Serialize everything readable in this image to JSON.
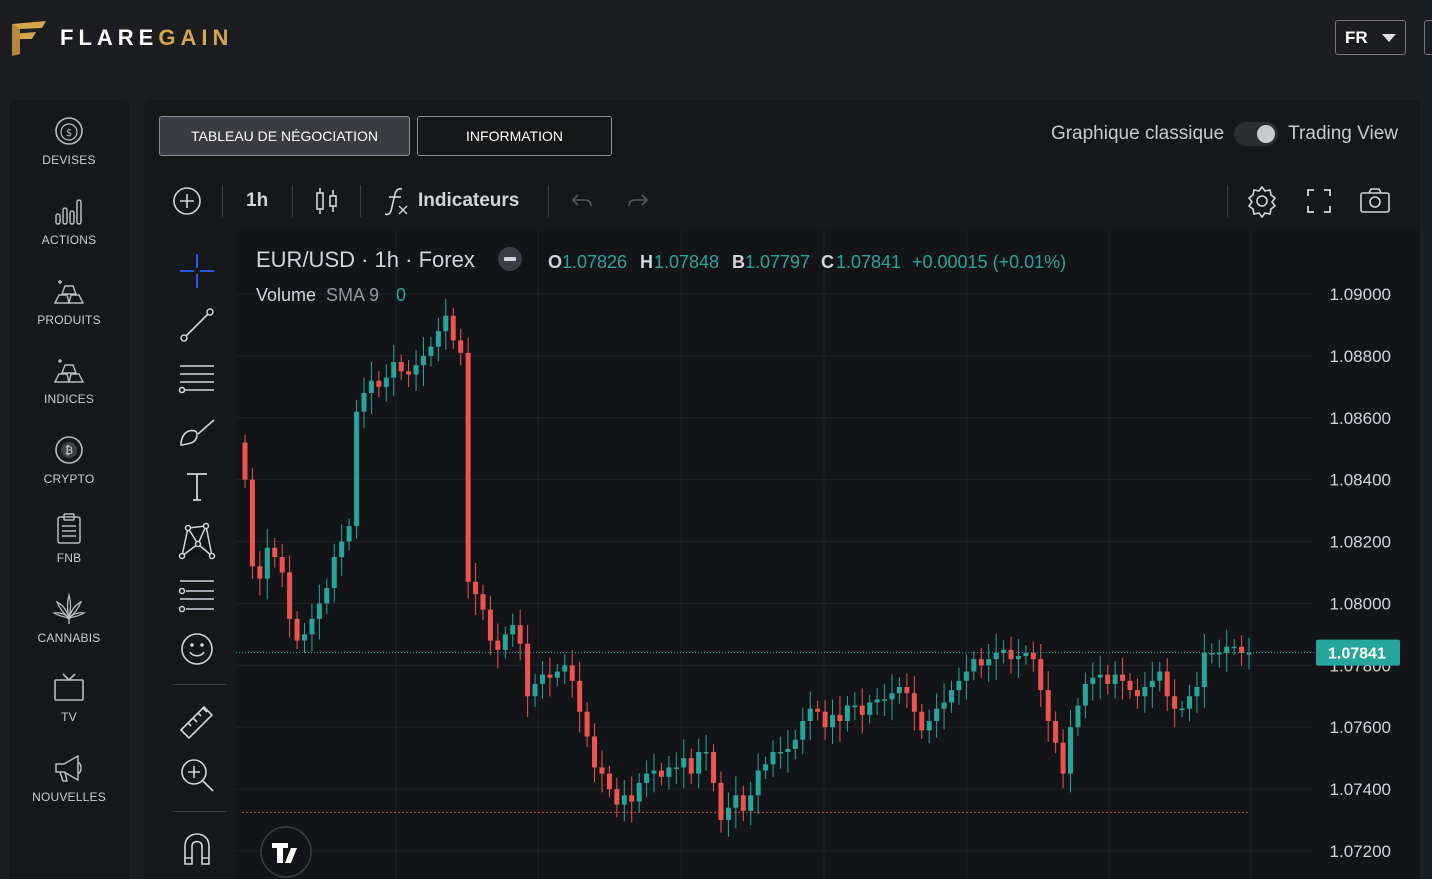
{
  "brand": {
    "part1": "FLARE",
    "part2": "GAIN",
    "gold": "#d4a54a"
  },
  "lang": {
    "value": "FR"
  },
  "sidebar": {
    "items": [
      {
        "label": "DEVISES",
        "icon": "dollar-coin-icon"
      },
      {
        "label": "ACTIONS",
        "icon": "bar-chart-icon"
      },
      {
        "label": "PRODUITS",
        "icon": "gold-bars-icon"
      },
      {
        "label": "INDICES",
        "icon": "gold-bars-icon"
      },
      {
        "label": "CRYPTO",
        "icon": "bitcoin-icon"
      },
      {
        "label": "FNB",
        "icon": "clipboard-icon"
      },
      {
        "label": "CANNABIS",
        "icon": "cannabis-leaf-icon"
      },
      {
        "label": "TV",
        "icon": "tv-icon"
      },
      {
        "label": "NOUVELLES",
        "icon": "megaphone-icon"
      }
    ]
  },
  "tabs": {
    "trading": "TABLEAU DE NÉGOCIATION",
    "info": "INFORMATION"
  },
  "view_toggle": {
    "left": "Graphique classique",
    "right": "Trading View"
  },
  "toolbar": {
    "interval": "1h",
    "indicators": "Indicateurs"
  },
  "legend": {
    "symbol": "EUR/USD · 1h · Forex",
    "o_label": "O",
    "o": "1.07826",
    "h_label": "H",
    "h": "1.07848",
    "b_label": "B",
    "b": "1.07797",
    "c_label": "C",
    "c": "1.07841",
    "change": "+0.00015 (+0.01%)",
    "volume_label": "Volume",
    "volume_sma": "SMA 9",
    "volume_value": "0"
  },
  "colors": {
    "up": "#26a69a",
    "down": "#ef5350",
    "price_label_bg": "#26a69a"
  },
  "chart_data": {
    "type": "candlestick",
    "symbol": "EUR/USD",
    "interval": "1h",
    "y_ticks": [
      "1.09000",
      "1.08800",
      "1.08600",
      "1.08400",
      "1.08200",
      "1.08000",
      "1.07800",
      "1.07600",
      "1.07400",
      "1.07200"
    ],
    "ylim": [
      1.0715,
      1.0905
    ],
    "last_price": "1.07841",
    "last_price_value": 1.07841,
    "lowest_line": 1.07325,
    "closes": [
      1.084,
      1.0812,
      1.0808,
      1.0818,
      1.0815,
      1.081,
      1.0795,
      1.0788,
      1.079,
      1.0795,
      1.08,
      1.0805,
      1.0815,
      1.082,
      1.0825,
      1.0862,
      1.0868,
      1.0872,
      1.087,
      1.0873,
      1.0878,
      1.0875,
      1.0874,
      1.0877,
      1.088,
      1.0883,
      1.0888,
      1.0893,
      1.0885,
      1.0881,
      1.0807,
      1.0803,
      1.0798,
      1.0788,
      1.0785,
      1.079,
      1.0793,
      1.0787,
      1.077,
      1.0774,
      1.0777,
      1.0776,
      1.0778,
      1.078,
      1.0775,
      1.0765,
      1.0757,
      1.0747,
      1.0745,
      1.074,
      1.0735,
      1.0738,
      1.0736,
      1.0742,
      1.0745,
      1.0746,
      1.0744,
      1.0747,
      1.0747,
      1.075,
      1.0745,
      1.0752,
      1.0752,
      1.0742,
      1.073,
      1.0734,
      1.0738,
      1.0733,
      1.0738,
      1.0746,
      1.0748,
      1.0752,
      1.0752,
      1.0753,
      1.0756,
      1.0762,
      1.0766,
      1.0765,
      1.076,
      1.0764,
      1.0762,
      1.0767,
      1.0767,
      1.0764,
      1.0768,
      1.0769,
      1.0769,
      1.0771,
      1.0773,
      1.0771,
      1.0765,
      1.0759,
      1.0762,
      1.0766,
      1.0768,
      1.0772,
      1.0775,
      1.0778,
      1.0782,
      1.078,
      1.0782,
      1.0784,
      1.0785,
      1.0782,
      1.0783,
      1.0784,
      1.0782,
      1.0772,
      1.0762,
      1.0755,
      1.0745,
      1.076,
      1.0767,
      1.0774,
      1.0776,
      1.0777,
      1.0774,
      1.0777,
      1.0775,
      1.0772,
      1.077,
      1.0773,
      1.0775,
      1.0778,
      1.077,
      1.0766,
      1.0766,
      1.077,
      1.0773,
      1.0784,
      1.0784,
      1.0784,
      1.0786,
      1.0786,
      1.0784,
      1.0784
    ]
  },
  "watermark": "TV"
}
